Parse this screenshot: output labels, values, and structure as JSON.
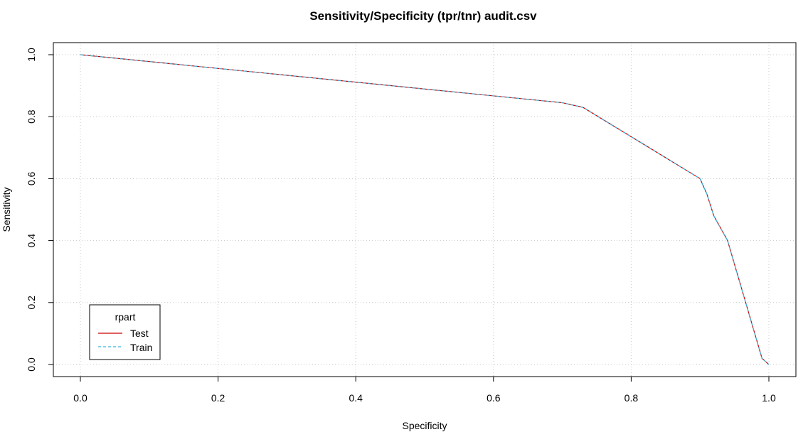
{
  "chart_data": {
    "type": "line",
    "title": "Sensitivity/Specificity (tpr/tnr)  audit.csv",
    "xlabel": "Specificity",
    "ylabel": "Sensitivity",
    "xlim": [
      0,
      1
    ],
    "ylim": [
      0,
      1
    ],
    "x_ticks": [
      "0.0",
      "0.2",
      "0.4",
      "0.6",
      "0.8",
      "1.0"
    ],
    "y_ticks": [
      "0.0",
      "0.2",
      "0.4",
      "0.6",
      "0.8",
      "1.0"
    ],
    "grid": true,
    "legend": {
      "title": "rpart",
      "placement": "bottom-left",
      "entries": [
        "Test",
        "Train"
      ]
    },
    "series": [
      {
        "name": "Test",
        "color": "#cc0000",
        "dash": "solid",
        "x": [
          0.0,
          0.7,
          0.73,
          0.9,
          0.91,
          0.92,
          0.94,
          0.99,
          1.0
        ],
        "y": [
          1.0,
          0.845,
          0.83,
          0.6,
          0.55,
          0.48,
          0.4,
          0.02,
          0.0
        ]
      },
      {
        "name": "Train",
        "color": "#38b8e0",
        "dash": "dashed",
        "x": [
          0.0,
          0.7,
          0.73,
          0.9,
          0.91,
          0.92,
          0.94,
          0.99,
          1.0
        ],
        "y": [
          1.0,
          0.845,
          0.83,
          0.6,
          0.55,
          0.48,
          0.4,
          0.02,
          0.0
        ]
      }
    ]
  }
}
